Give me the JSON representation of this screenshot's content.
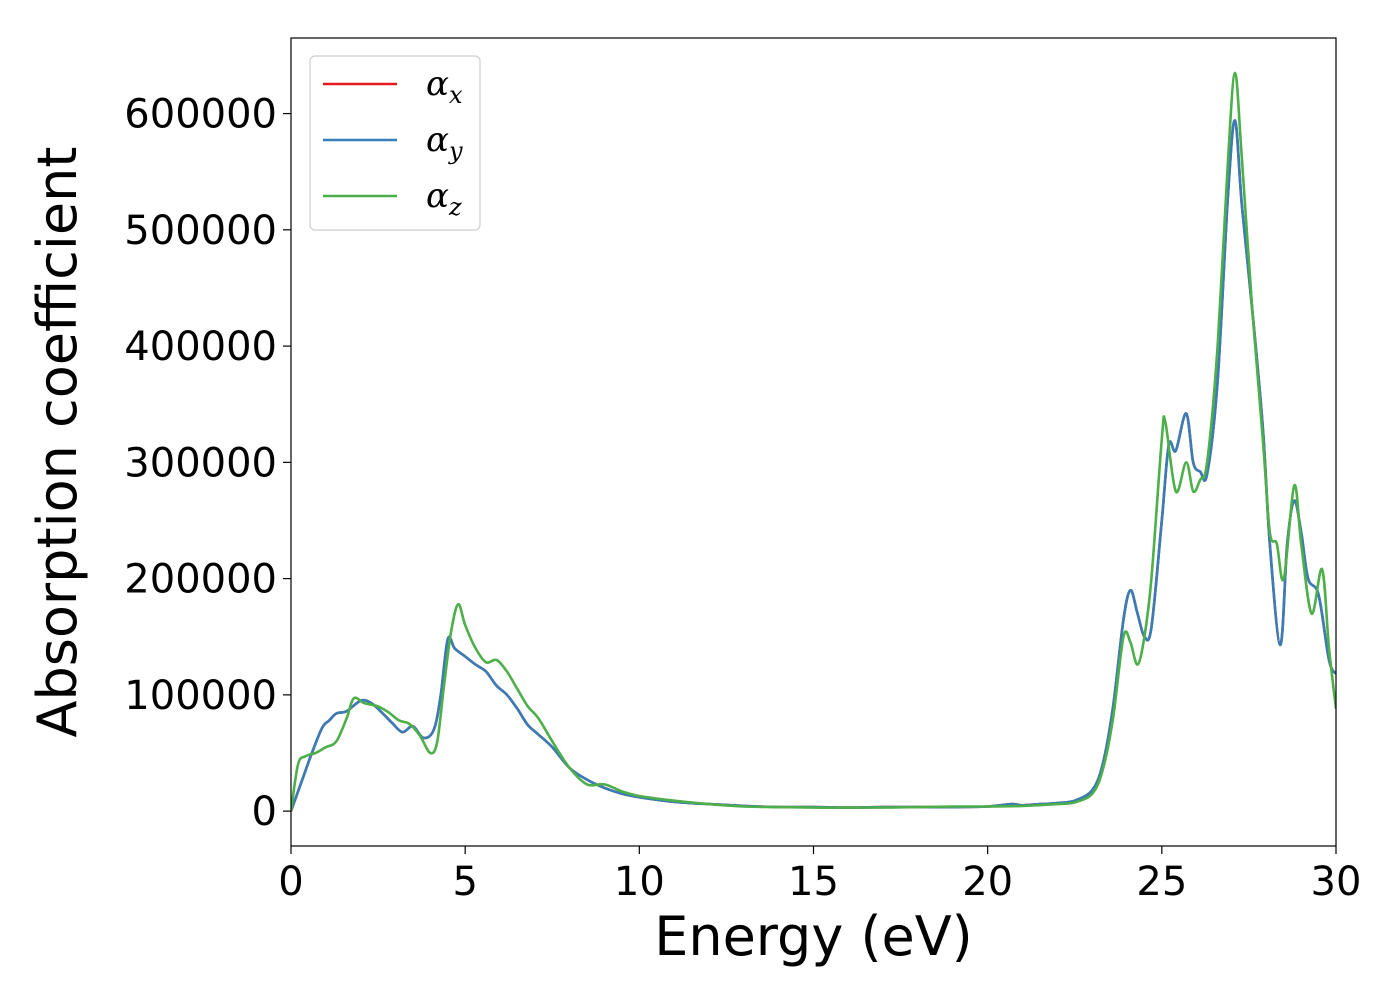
{
  "chart_data": {
    "type": "line",
    "title": "",
    "xlabel": "Energy (eV)",
    "ylabel": "Absorption coefficient",
    "xlim": [
      0,
      30
    ],
    "ylim": [
      -30000,
      665000
    ],
    "xticks": [
      0,
      5,
      10,
      15,
      20,
      25,
      30
    ],
    "xtick_labels": [
      "0",
      "5",
      "10",
      "15",
      "20",
      "25",
      "30"
    ],
    "yticks": [
      0,
      100000,
      200000,
      300000,
      400000,
      500000,
      600000
    ],
    "ytick_labels": [
      "0",
      "100000",
      "200000",
      "300000",
      "400000",
      "500000",
      "600000"
    ],
    "grid": false,
    "legend_position": "top-left",
    "series": [
      {
        "name": "α",
        "subscript": "x",
        "color": "#e41a1c",
        "x": [
          0,
          0.3,
          0.6,
          0.9,
          1.1,
          1.3,
          1.6,
          2.0,
          2.3,
          2.6,
          2.9,
          3.2,
          3.5,
          3.8,
          4.1,
          4.3,
          4.5,
          4.7,
          5.0,
          5.3,
          5.6,
          5.9,
          6.2,
          6.5,
          6.8,
          7.1,
          7.5,
          8.0,
          8.5,
          9.0,
          9.5,
          10.0,
          11.0,
          12.0,
          13.0,
          14.0,
          15.0,
          16.0,
          17.0,
          18.0,
          19.0,
          20.0,
          20.7,
          21.0,
          21.5,
          22.0,
          22.5,
          23.0,
          23.3,
          23.6,
          23.9,
          24.1,
          24.3,
          24.5,
          24.7,
          25.0,
          25.2,
          25.4,
          25.7,
          25.9,
          26.1,
          26.3,
          26.6,
          26.9,
          27.1,
          27.3,
          27.6,
          27.9,
          28.1,
          28.4,
          28.6,
          28.8,
          29.0,
          29.2,
          29.5,
          29.8,
          30.0
        ],
        "y": [
          0,
          25000,
          50000,
          72000,
          78000,
          84000,
          86000,
          95000,
          93000,
          85000,
          76000,
          68000,
          73000,
          63000,
          70000,
          100000,
          148000,
          140000,
          133000,
          126000,
          120000,
          108000,
          100000,
          88000,
          74000,
          66000,
          55000,
          37000,
          27000,
          20000,
          15000,
          12000,
          8000,
          6000,
          4500,
          3500,
          3500,
          3000,
          3500,
          3500,
          3500,
          4000,
          6000,
          5000,
          6000,
          7000,
          9000,
          18000,
          40000,
          90000,
          165000,
          190000,
          170000,
          150000,
          158000,
          250000,
          315000,
          310000,
          342000,
          300000,
          292000,
          290000,
          370000,
          530000,
          594000,
          520000,
          430000,
          330000,
          230000,
          143000,
          230000,
          267000,
          240000,
          200000,
          186000,
          130000,
          118000
        ]
      },
      {
        "name": "α",
        "subscript": "y",
        "color": "#377eb8",
        "x": [
          0,
          0.3,
          0.6,
          0.9,
          1.1,
          1.3,
          1.6,
          2.0,
          2.3,
          2.6,
          2.9,
          3.2,
          3.5,
          3.8,
          4.1,
          4.3,
          4.5,
          4.7,
          5.0,
          5.3,
          5.6,
          5.9,
          6.2,
          6.5,
          6.8,
          7.1,
          7.5,
          8.0,
          8.5,
          9.0,
          9.5,
          10.0,
          11.0,
          12.0,
          13.0,
          14.0,
          15.0,
          16.0,
          17.0,
          18.0,
          19.0,
          20.0,
          20.7,
          21.0,
          21.5,
          22.0,
          22.5,
          23.0,
          23.3,
          23.6,
          23.9,
          24.1,
          24.3,
          24.5,
          24.7,
          25.0,
          25.2,
          25.4,
          25.7,
          25.9,
          26.1,
          26.3,
          26.6,
          26.9,
          27.1,
          27.3,
          27.6,
          27.9,
          28.1,
          28.4,
          28.6,
          28.8,
          29.0,
          29.2,
          29.5,
          29.8,
          30.0
        ],
        "y": [
          0,
          25000,
          50000,
          72000,
          78000,
          84000,
          86000,
          95000,
          93000,
          85000,
          76000,
          68000,
          73000,
          63000,
          70000,
          100000,
          148000,
          140000,
          133000,
          126000,
          120000,
          108000,
          100000,
          88000,
          74000,
          66000,
          55000,
          37000,
          27000,
          20000,
          15000,
          12000,
          8000,
          6000,
          4500,
          3500,
          3500,
          3000,
          3500,
          3500,
          3500,
          4000,
          6000,
          5000,
          6000,
          7000,
          9000,
          18000,
          40000,
          90000,
          165000,
          190000,
          170000,
          150000,
          158000,
          250000,
          315000,
          310000,
          342000,
          300000,
          292000,
          290000,
          370000,
          530000,
          594000,
          520000,
          430000,
          330000,
          230000,
          143000,
          230000,
          267000,
          240000,
          200000,
          186000,
          130000,
          118000
        ]
      },
      {
        "name": "α",
        "subscript": "z",
        "color": "#4daf4a",
        "x": [
          0,
          0.2,
          0.4,
          0.7,
          1.0,
          1.3,
          1.6,
          1.8,
          2.1,
          2.5,
          2.8,
          3.1,
          3.4,
          3.7,
          4.0,
          4.2,
          4.4,
          4.6,
          4.8,
          5.0,
          5.3,
          5.6,
          5.9,
          6.2,
          6.5,
          6.8,
          7.1,
          7.5,
          8.0,
          8.5,
          9.0,
          9.5,
          10.0,
          11.0,
          12.0,
          13.0,
          14.0,
          15.0,
          16.0,
          17.0,
          18.0,
          19.0,
          20.0,
          21.0,
          22.0,
          22.5,
          23.0,
          23.3,
          23.6,
          23.9,
          24.1,
          24.3,
          24.5,
          24.7,
          25.0,
          25.1,
          25.4,
          25.7,
          25.9,
          26.1,
          26.3,
          26.6,
          26.9,
          27.1,
          27.3,
          27.6,
          27.9,
          28.1,
          28.3,
          28.5,
          28.8,
          29.0,
          29.3,
          29.6,
          29.8,
          30.0
        ],
        "y": [
          0,
          40000,
          47000,
          50000,
          55000,
          60000,
          80000,
          97000,
          93000,
          90000,
          85000,
          78000,
          75000,
          65000,
          50000,
          60000,
          110000,
          155000,
          178000,
          160000,
          140000,
          128000,
          130000,
          120000,
          105000,
          90000,
          80000,
          60000,
          37000,
          23000,
          23000,
          17000,
          13000,
          9000,
          6000,
          4000,
          3500,
          3000,
          3000,
          3000,
          3500,
          4000,
          4000,
          4500,
          6000,
          7500,
          15000,
          35000,
          80000,
          150000,
          145000,
          126000,
          150000,
          200000,
          320000,
          335000,
          275000,
          300000,
          275000,
          285000,
          300000,
          400000,
          560000,
          635000,
          560000,
          430000,
          320000,
          240000,
          230000,
          200000,
          280000,
          230000,
          170000,
          208000,
          140000,
          88000
        ]
      }
    ]
  }
}
